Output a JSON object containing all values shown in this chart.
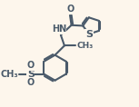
{
  "bg_color": "#fdf6ec",
  "line_color": "#4a5a6a",
  "line_width": 1.5,
  "font_size": 7.0,
  "figsize": [
    1.53,
    1.18
  ],
  "dpi": 100,
  "xlim": [
    0,
    10
  ],
  "ylim": [
    0,
    7.7
  ]
}
